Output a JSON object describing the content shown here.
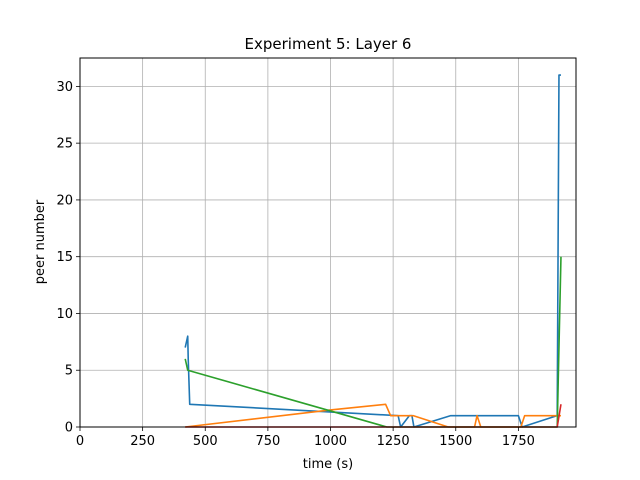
{
  "chart_data": {
    "type": "line",
    "title": "Experiment 5: Layer 6",
    "xlabel": "time (s)",
    "ylabel": "peer number",
    "xlim": [
      0,
      1980
    ],
    "ylim": [
      0,
      32.5
    ],
    "xticks": [
      0,
      250,
      500,
      750,
      1000,
      1250,
      1500,
      1750
    ],
    "yticks": [
      0,
      5,
      10,
      15,
      20,
      25,
      30
    ],
    "grid": true,
    "series": [
      {
        "color": "#1f77b4",
        "x": [
          420,
          430,
          432,
          438,
          1270,
          1280,
          1315,
          1325,
          1333,
          1480,
          1750,
          1765,
          1905,
          1912,
          1920
        ],
        "y": [
          7,
          8,
          6,
          2,
          1,
          0,
          1,
          1,
          0,
          1,
          1,
          0,
          1,
          31,
          31
        ]
      },
      {
        "color": "#ff7f0e",
        "x": [
          420,
          1000,
          1220,
          1240,
          1330,
          1470,
          1575,
          1585,
          1600,
          1760,
          1775,
          1905,
          1920
        ],
        "y": [
          0,
          1.5,
          2,
          1,
          1,
          0,
          0,
          1,
          0,
          0,
          1,
          1,
          1
        ]
      },
      {
        "color": "#2ca02c",
        "x": [
          420,
          430,
          1225,
          1900,
          1905,
          1920
        ],
        "y": [
          6,
          5,
          0,
          0,
          0,
          15
        ]
      },
      {
        "color": "#d62728",
        "x": [
          420,
          1900,
          1905,
          1920
        ],
        "y": [
          0,
          0,
          0,
          2
        ]
      }
    ]
  }
}
